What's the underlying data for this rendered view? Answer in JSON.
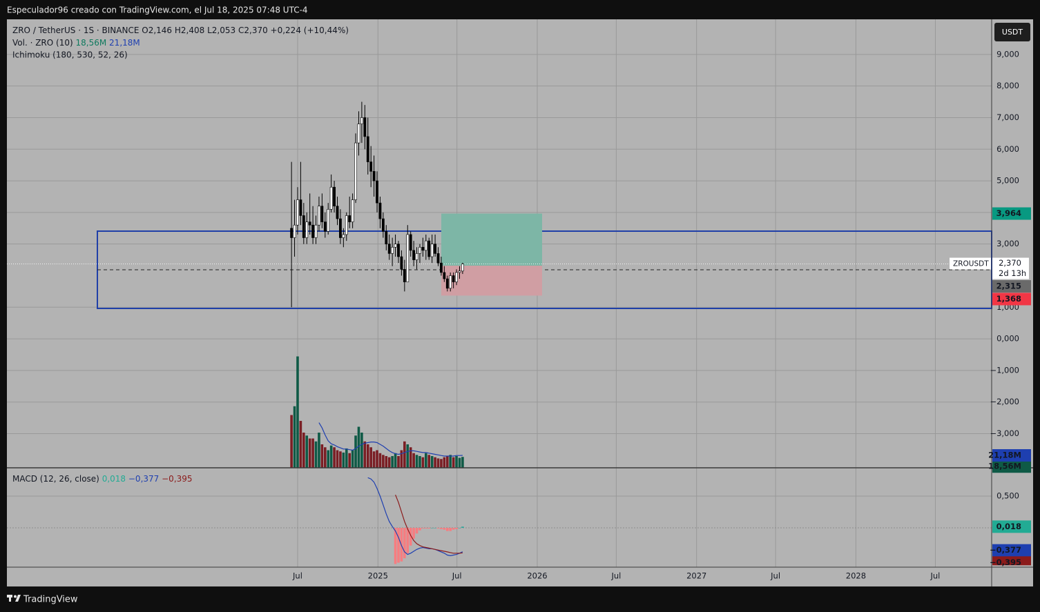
{
  "header": "Especulador96 creado con TradingView.com, el Jul 18, 2025 07:48 UTC-4",
  "footer": "TradingView",
  "chart_data": {
    "type": "candlestick",
    "symbol": "ZRO / TetherUS · 1S · BINANCE",
    "ohlc_labels": [
      "O2,146",
      "H2,408",
      "L2,053",
      "C2,370"
    ],
    "change_label": "+0,224 (+10,44%)",
    "indicator": "Ichimoku (180, 530, 52, 26)",
    "currency": "USDT",
    "last_symbol": "ZROUSDT",
    "last_price_label": "2,370",
    "countdown": "2d 13h",
    "up_color": "#ffffff",
    "down_color": "#000000",
    "x": [
      "2024-06-17",
      "2024-06-24",
      "2024-07-01",
      "2024-07-08",
      "2024-07-15",
      "2024-07-22",
      "2024-07-29",
      "2024-08-05",
      "2024-08-12",
      "2024-08-19",
      "2024-08-26",
      "2024-09-02",
      "2024-09-09",
      "2024-09-16",
      "2024-09-23",
      "2024-09-30",
      "2024-10-07",
      "2024-10-14",
      "2024-10-21",
      "2024-10-28",
      "2024-11-04",
      "2024-11-11",
      "2024-11-18",
      "2024-11-25",
      "2024-12-02",
      "2024-12-09",
      "2024-12-16",
      "2024-12-23",
      "2024-12-30",
      "2025-01-06",
      "2025-01-13",
      "2025-01-20",
      "2025-01-27",
      "2025-02-03",
      "2025-02-10",
      "2025-02-17",
      "2025-02-24",
      "2025-03-03",
      "2025-03-10",
      "2025-03-17",
      "2025-03-24",
      "2025-03-31",
      "2025-04-07",
      "2025-04-14",
      "2025-04-21",
      "2025-04-28",
      "2025-05-05",
      "2025-05-12",
      "2025-05-19",
      "2025-05-26",
      "2025-06-02",
      "2025-06-09",
      "2025-06-16",
      "2025-06-23",
      "2025-06-30",
      "2025-07-07",
      "2025-07-14"
    ],
    "open": [
      3.5,
      3.2,
      3.6,
      4.4,
      3.9,
      3.2,
      3.7,
      3.6,
      3.2,
      3.6,
      4.2,
      3.7,
      3.4,
      4.1,
      4.8,
      4.2,
      3.8,
      3.2,
      3.3,
      3.9,
      3.7,
      4.4,
      6.2,
      6.8,
      7.0,
      6.4,
      5.6,
      5.3,
      5.0,
      4.3,
      3.8,
      3.4,
      3.0,
      2.7,
      2.9,
      3.0,
      2.6,
      2.2,
      1.8,
      3.3,
      2.8,
      2.5,
      2.7,
      2.9,
      2.8,
      3.1,
      2.6,
      3.0,
      2.7,
      2.4,
      2.1,
      1.9,
      1.6,
      2.0,
      1.8,
      2.1,
      2.146
    ],
    "high": [
      5.6,
      4.4,
      4.8,
      5.6,
      4.3,
      4.0,
      4.6,
      4.2,
      3.9,
      4.5,
      4.6,
      4.0,
      4.3,
      5.2,
      5.0,
      4.5,
      4.1,
      3.5,
      4.0,
      4.5,
      4.6,
      6.5,
      7.2,
      7.5,
      7.4,
      7.0,
      6.1,
      5.8,
      5.3,
      4.5,
      4.0,
      3.6,
      3.3,
      3.2,
      3.3,
      3.1,
      2.8,
      2.5,
      3.6,
      3.4,
      3.1,
      2.9,
      3.0,
      3.2,
      3.3,
      3.2,
      3.3,
      3.3,
      2.9,
      2.6,
      2.3,
      2.0,
      2.1,
      2.1,
      2.2,
      2.3,
      2.408
    ],
    "low": [
      1.0,
      2.6,
      3.3,
      3.6,
      3.0,
      3.0,
      3.3,
      3.0,
      3.0,
      3.4,
      3.5,
      3.2,
      3.3,
      4.0,
      4.0,
      3.6,
      3.0,
      2.9,
      3.1,
      3.5,
      3.5,
      4.3,
      5.8,
      6.2,
      6.0,
      5.2,
      4.8,
      4.5,
      4.0,
      3.5,
      3.2,
      2.8,
      2.5,
      2.3,
      2.6,
      2.4,
      2.0,
      1.5,
      1.8,
      2.6,
      2.3,
      2.2,
      2.4,
      2.6,
      2.5,
      2.5,
      2.4,
      2.6,
      2.3,
      2.0,
      1.8,
      1.5,
      1.5,
      1.6,
      1.7,
      1.9,
      2.053
    ],
    "close": [
      3.2,
      3.6,
      4.4,
      3.9,
      3.2,
      3.7,
      3.6,
      3.2,
      3.6,
      4.2,
      3.7,
      3.4,
      4.1,
      4.8,
      4.2,
      3.8,
      3.2,
      3.3,
      3.9,
      3.7,
      4.4,
      6.2,
      6.8,
      7.0,
      6.4,
      5.6,
      5.3,
      5.0,
      4.3,
      3.8,
      3.4,
      3.0,
      2.7,
      2.9,
      3.0,
      2.6,
      2.2,
      1.8,
      3.3,
      2.8,
      2.5,
      2.7,
      2.9,
      2.8,
      3.1,
      2.6,
      3.0,
      2.7,
      2.4,
      2.1,
      1.9,
      1.6,
      2.0,
      1.8,
      2.1,
      2.146,
      2.37
    ],
    "xlim": [
      "2022-09-04",
      "2028-11-07"
    ],
    "xticks": [
      {
        "value": "2024-07-01",
        "label": "Jul"
      },
      {
        "value": "2025-01-01",
        "label": "2025"
      },
      {
        "value": "2025-07-01",
        "label": "Jul"
      },
      {
        "value": "2026-01-01",
        "label": "2026"
      },
      {
        "value": "2026-07-01",
        "label": "Jul"
      },
      {
        "value": "2027-01-01",
        "label": "2027"
      },
      {
        "value": "2027-07-01",
        "label": "Jul"
      },
      {
        "value": "2028-01-01",
        "label": "2028"
      },
      {
        "value": "2028-07-01",
        "label": "Jul"
      }
    ],
    "ylim": [
      -4.08,
      10.11
    ],
    "yticks": [
      {
        "value": 9,
        "label": "9,000"
      },
      {
        "value": 8,
        "label": "8,000"
      },
      {
        "value": 7,
        "label": "7,000"
      },
      {
        "value": 6,
        "label": "6,000"
      },
      {
        "value": 5,
        "label": "5,000"
      },
      {
        "value": 4,
        "label": "4,000"
      },
      {
        "value": 3,
        "label": "3,000"
      },
      {
        "value": 1,
        "label": "1,000"
      },
      {
        "value": 0,
        "label": "0,000"
      },
      {
        "value": -1,
        "label": "−1,000"
      },
      {
        "value": -2,
        "label": "−2,000"
      },
      {
        "value": -3,
        "label": "−3,000"
      }
    ],
    "grid": true,
    "position": {
      "target": 3.964,
      "target_label": "3,964",
      "target_color": "#089981",
      "entry": 2.315,
      "entry_label": "2,315",
      "entry_color": "#6a6a6a",
      "stop": 1.368,
      "stop_label": "1,368",
      "stop_color": "#f23645"
    },
    "volume": {
      "title": "Vol. · ZRO (10)",
      "ylim": [
        0,
        765
      ],
      "up_color": "#0f5a46",
      "down_color": "#7a1e24",
      "values": [
        90,
        105,
        190,
        80,
        60,
        55,
        50,
        50,
        45,
        60,
        40,
        35,
        30,
        38,
        35,
        30,
        28,
        26,
        33,
        25,
        30,
        55,
        70,
        60,
        45,
        40,
        35,
        28,
        30,
        25,
        22,
        20,
        18,
        20,
        25,
        20,
        30,
        45,
        40,
        35,
        25,
        22,
        20,
        18,
        25,
        22,
        20,
        18,
        16,
        15,
        18,
        20,
        22,
        18,
        20,
        17,
        18.56
      ],
      "legend_label": "18,56M",
      "legend_color": "#0f7a5e",
      "ma": {
        "color": "#1e3fb0",
        "legend_label": "21,18M",
        "values": [
          null,
          null,
          null,
          null,
          null,
          null,
          null,
          null,
          null,
          77,
          68,
          56,
          46,
          41,
          39,
          36,
          34,
          32,
          32,
          31,
          30,
          33,
          37,
          40,
          42,
          43,
          44,
          44,
          43,
          40,
          37,
          33,
          29,
          26,
          24,
          23,
          24,
          26,
          28,
          29,
          29,
          28,
          27,
          26,
          26,
          25,
          24,
          23,
          22,
          21,
          20,
          20,
          20,
          20,
          21,
          21,
          21.18
        ]
      }
    },
    "macd": {
      "title": "MACD (12, 26, close)",
      "ylim": [
        -0.62,
        0.946
      ],
      "yticks": [
        {
          "value": 0.5,
          "label": "0,500"
        }
      ],
      "histogram": {
        "up_color": "#26a69a",
        "down_color": "#f77c80",
        "legend_label": "0,018",
        "legend_color": "#22ab94",
        "values": [
          null,
          null,
          null,
          null,
          null,
          null,
          null,
          null,
          null,
          null,
          null,
          null,
          null,
          null,
          null,
          null,
          null,
          null,
          null,
          null,
          null,
          null,
          null,
          null,
          null,
          null,
          null,
          null,
          null,
          null,
          null,
          null,
          null,
          null,
          -0.57,
          -0.55,
          -0.53,
          -0.48,
          -0.4,
          -0.28,
          -0.17,
          -0.09,
          -0.04,
          -0.01,
          -0.01,
          -0.01,
          0.0,
          0.0,
          -0.01,
          -0.02,
          -0.03,
          -0.05,
          -0.05,
          -0.03,
          -0.02,
          0.0,
          0.018
        ]
      },
      "line": {
        "color": "#1e3fb0",
        "legend_label": "−0,377",
        "values": [
          null,
          null,
          null,
          null,
          null,
          null,
          null,
          null,
          null,
          null,
          null,
          null,
          null,
          null,
          null,
          null,
          null,
          null,
          null,
          null,
          null,
          null,
          null,
          null,
          null,
          0.79,
          0.77,
          0.72,
          0.62,
          0.5,
          0.36,
          0.22,
          0.1,
          0.02,
          -0.05,
          -0.15,
          -0.28,
          -0.38,
          -0.42,
          -0.4,
          -0.37,
          -0.34,
          -0.32,
          -0.31,
          -0.32,
          -0.33,
          -0.33,
          -0.34,
          -0.36,
          -0.38,
          -0.4,
          -0.43,
          -0.44,
          -0.43,
          -0.42,
          -0.4,
          -0.377
        ]
      },
      "signal": {
        "color": "#8b1a1a",
        "legend_label": "−0,395",
        "values": [
          null,
          null,
          null,
          null,
          null,
          null,
          null,
          null,
          null,
          null,
          null,
          null,
          null,
          null,
          null,
          null,
          null,
          null,
          null,
          null,
          null,
          null,
          null,
          null,
          null,
          null,
          null,
          null,
          null,
          null,
          null,
          null,
          null,
          null,
          0.52,
          0.4,
          0.25,
          0.1,
          -0.02,
          -0.12,
          -0.2,
          -0.25,
          -0.28,
          -0.3,
          -0.31,
          -0.32,
          -0.33,
          -0.34,
          -0.35,
          -0.36,
          -0.37,
          -0.38,
          -0.39,
          -0.4,
          -0.4,
          -0.4,
          -0.395
        ]
      }
    }
  }
}
